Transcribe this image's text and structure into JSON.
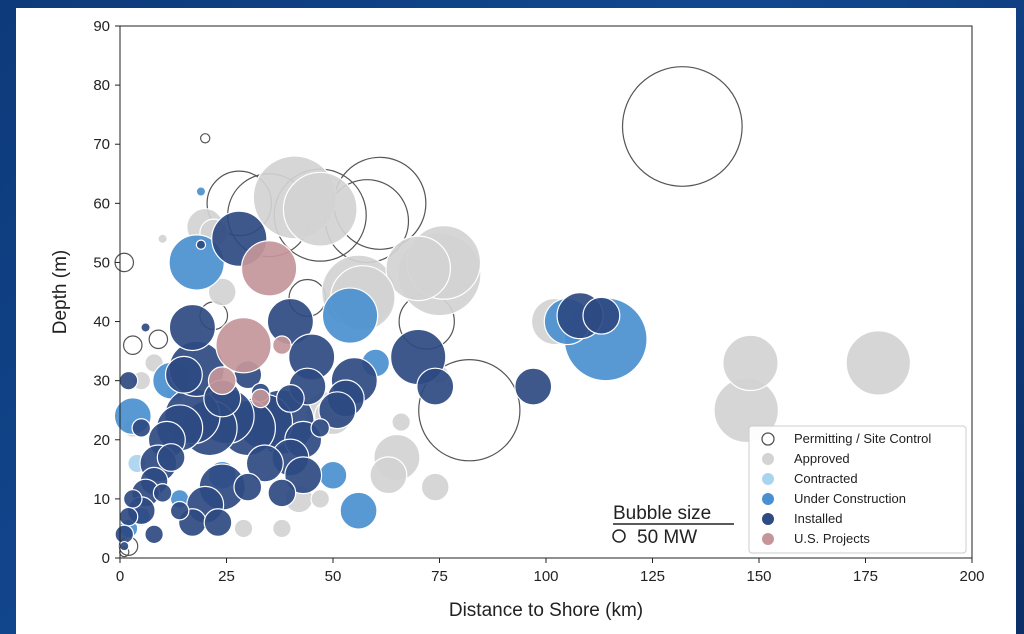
{
  "chart_data": {
    "type": "scatter",
    "subtype": "bubble",
    "xlabel": "Distance to Shore (km)",
    "ylabel": "Depth (m)",
    "xlim": [
      0,
      200
    ],
    "ylim": [
      0,
      90
    ],
    "xticks": [
      "0",
      "25",
      "50",
      "75",
      "100",
      "125",
      "150",
      "175",
      "200"
    ],
    "yticks": [
      "0",
      "10",
      "20",
      "30",
      "40",
      "50",
      "60",
      "70",
      "80",
      "90"
    ],
    "grid": false,
    "legend_position": "bottom-right",
    "size_legend": {
      "title": "Bubble size",
      "label": "50 MW"
    },
    "series": [
      {
        "name": "Permitting / Site Control",
        "style": "hollow",
        "color": "#555555",
        "points": [
          {
            "x": 132,
            "y": 73,
            "r": 13
          },
          {
            "x": 20,
            "y": 71,
            "r": 1
          },
          {
            "x": 1,
            "y": 50,
            "r": 2
          },
          {
            "x": 61,
            "y": 60,
            "r": 10
          },
          {
            "x": 58,
            "y": 57,
            "r": 9
          },
          {
            "x": 47,
            "y": 58,
            "r": 10
          },
          {
            "x": 35,
            "y": 58,
            "r": 9
          },
          {
            "x": 28,
            "y": 60,
            "r": 7
          },
          {
            "x": 82,
            "y": 25,
            "r": 11
          },
          {
            "x": 72,
            "y": 40,
            "r": 6
          },
          {
            "x": 3,
            "y": 36,
            "r": 2
          },
          {
            "x": 9,
            "y": 37,
            "r": 2
          },
          {
            "x": 22,
            "y": 41,
            "r": 3
          },
          {
            "x": 44,
            "y": 44,
            "r": 4
          },
          {
            "x": 2,
            "y": 2,
            "r": 2
          },
          {
            "x": 1,
            "y": 1,
            "r": 1
          }
        ]
      },
      {
        "name": "Approved",
        "style": "filled",
        "color": "#d3d3d3",
        "points": [
          {
            "x": 41,
            "y": 61,
            "r": 9
          },
          {
            "x": 47,
            "y": 59,
            "r": 8
          },
          {
            "x": 75,
            "y": 48,
            "r": 9
          },
          {
            "x": 76,
            "y": 50,
            "r": 8
          },
          {
            "x": 70,
            "y": 49,
            "r": 7
          },
          {
            "x": 56,
            "y": 45,
            "r": 8
          },
          {
            "x": 57,
            "y": 44,
            "r": 7
          },
          {
            "x": 102,
            "y": 40,
            "r": 5
          },
          {
            "x": 148,
            "y": 33,
            "r": 6
          },
          {
            "x": 147,
            "y": 25,
            "r": 7
          },
          {
            "x": 178,
            "y": 33,
            "r": 7
          },
          {
            "x": 20,
            "y": 56,
            "r": 4
          },
          {
            "x": 22,
            "y": 55,
            "r": 3
          },
          {
            "x": 10,
            "y": 54,
            "r": 1
          },
          {
            "x": 24,
            "y": 45,
            "r": 3
          },
          {
            "x": 65,
            "y": 17,
            "r": 5
          },
          {
            "x": 63,
            "y": 14,
            "r": 4
          },
          {
            "x": 74,
            "y": 12,
            "r": 3
          },
          {
            "x": 48,
            "y": 25,
            "r": 4
          },
          {
            "x": 50,
            "y": 24,
            "r": 4
          },
          {
            "x": 42,
            "y": 10,
            "r": 3
          },
          {
            "x": 38,
            "y": 5,
            "r": 2
          },
          {
            "x": 47,
            "y": 10,
            "r": 2
          },
          {
            "x": 29,
            "y": 5,
            "r": 2
          },
          {
            "x": 5,
            "y": 30,
            "r": 2
          },
          {
            "x": 8,
            "y": 33,
            "r": 2
          },
          {
            "x": 66,
            "y": 23,
            "r": 2
          },
          {
            "x": 75,
            "y": 31,
            "r": 2
          },
          {
            "x": 3,
            "y": 22,
            "r": 2
          }
        ]
      },
      {
        "name": "Contracted",
        "style": "filled",
        "color": "#a9d4ee",
        "points": [
          {
            "x": 4,
            "y": 16,
            "r": 2
          },
          {
            "x": 13,
            "y": 28,
            "r": 2
          }
        ]
      },
      {
        "name": "Under Construction",
        "style": "filled",
        "color": "#4a90d0",
        "points": [
          {
            "x": 114,
            "y": 37,
            "r": 9
          },
          {
            "x": 105,
            "y": 40,
            "r": 5
          },
          {
            "x": 18,
            "y": 50,
            "r": 6
          },
          {
            "x": 54,
            "y": 41,
            "r": 6
          },
          {
            "x": 56,
            "y": 8,
            "r": 4
          },
          {
            "x": 50,
            "y": 14,
            "r": 3
          },
          {
            "x": 19,
            "y": 62,
            "r": 1
          },
          {
            "x": 3,
            "y": 24,
            "r": 4
          },
          {
            "x": 12,
            "y": 30,
            "r": 4
          },
          {
            "x": 60,
            "y": 33,
            "r": 3
          },
          {
            "x": 2,
            "y": 5,
            "r": 2
          },
          {
            "x": 5,
            "y": 7,
            "r": 2
          },
          {
            "x": 14,
            "y": 10,
            "r": 2
          },
          {
            "x": 24,
            "y": 14,
            "r": 3
          }
        ]
      },
      {
        "name": "Installed",
        "style": "filled",
        "color": "#2e4a82",
        "points": [
          {
            "x": 28,
            "y": 54,
            "r": 6
          },
          {
            "x": 108,
            "y": 41,
            "r": 5
          },
          {
            "x": 113,
            "y": 41,
            "r": 4
          },
          {
            "x": 70,
            "y": 34,
            "r": 6
          },
          {
            "x": 74,
            "y": 29,
            "r": 4
          },
          {
            "x": 97,
            "y": 29,
            "r": 4
          },
          {
            "x": 17,
            "y": 39,
            "r": 5
          },
          {
            "x": 40,
            "y": 40,
            "r": 5
          },
          {
            "x": 45,
            "y": 34,
            "r": 5
          },
          {
            "x": 44,
            "y": 29,
            "r": 4
          },
          {
            "x": 55,
            "y": 30,
            "r": 5
          },
          {
            "x": 53,
            "y": 27,
            "r": 4
          },
          {
            "x": 51,
            "y": 25,
            "r": 4
          },
          {
            "x": 38,
            "y": 23,
            "r": 7
          },
          {
            "x": 34,
            "y": 23,
            "r": 6
          },
          {
            "x": 30,
            "y": 22,
            "r": 6
          },
          {
            "x": 25,
            "y": 24,
            "r": 6
          },
          {
            "x": 21,
            "y": 22,
            "r": 6
          },
          {
            "x": 17,
            "y": 24,
            "r": 6
          },
          {
            "x": 14,
            "y": 22,
            "r": 5
          },
          {
            "x": 11,
            "y": 20,
            "r": 4
          },
          {
            "x": 9,
            "y": 16,
            "r": 4
          },
          {
            "x": 8,
            "y": 13,
            "r": 3
          },
          {
            "x": 6,
            "y": 11,
            "r": 3
          },
          {
            "x": 5,
            "y": 8,
            "r": 3
          },
          {
            "x": 3,
            "y": 10,
            "r": 2
          },
          {
            "x": 2,
            "y": 7,
            "r": 2
          },
          {
            "x": 1,
            "y": 4,
            "r": 2
          },
          {
            "x": 1,
            "y": 2,
            "r": 1
          },
          {
            "x": 18,
            "y": 32,
            "r": 6
          },
          {
            "x": 15,
            "y": 31,
            "r": 4
          },
          {
            "x": 24,
            "y": 27,
            "r": 4
          },
          {
            "x": 43,
            "y": 20,
            "r": 4
          },
          {
            "x": 40,
            "y": 17,
            "r": 4
          },
          {
            "x": 34,
            "y": 16,
            "r": 4
          },
          {
            "x": 38,
            "y": 11,
            "r": 3
          },
          {
            "x": 43,
            "y": 14,
            "r": 4
          },
          {
            "x": 30,
            "y": 12,
            "r": 3
          },
          {
            "x": 24,
            "y": 12,
            "r": 5
          },
          {
            "x": 20,
            "y": 9,
            "r": 4
          },
          {
            "x": 17,
            "y": 6,
            "r": 3
          },
          {
            "x": 23,
            "y": 6,
            "r": 3
          },
          {
            "x": 10,
            "y": 11,
            "r": 2
          },
          {
            "x": 8,
            "y": 4,
            "r": 2
          },
          {
            "x": 14,
            "y": 8,
            "r": 2
          },
          {
            "x": 2,
            "y": 30,
            "r": 2
          },
          {
            "x": 6,
            "y": 39,
            "r": 1
          },
          {
            "x": 19,
            "y": 53,
            "r": 1
          },
          {
            "x": 40,
            "y": 27,
            "r": 3
          },
          {
            "x": 30,
            "y": 31,
            "r": 3
          },
          {
            "x": 12,
            "y": 17,
            "r": 3
          },
          {
            "x": 5,
            "y": 22,
            "r": 2
          },
          {
            "x": 33,
            "y": 28,
            "r": 2
          },
          {
            "x": 47,
            "y": 22,
            "r": 2
          }
        ]
      },
      {
        "name": "U.S. Projects",
        "style": "filled",
        "color": "#c4969a",
        "points": [
          {
            "x": 35,
            "y": 49,
            "r": 6
          },
          {
            "x": 29,
            "y": 36,
            "r": 6
          },
          {
            "x": 38,
            "y": 36,
            "r": 2
          },
          {
            "x": 24,
            "y": 30,
            "r": 3
          },
          {
            "x": 33,
            "y": 27,
            "r": 2
          }
        ]
      }
    ]
  }
}
